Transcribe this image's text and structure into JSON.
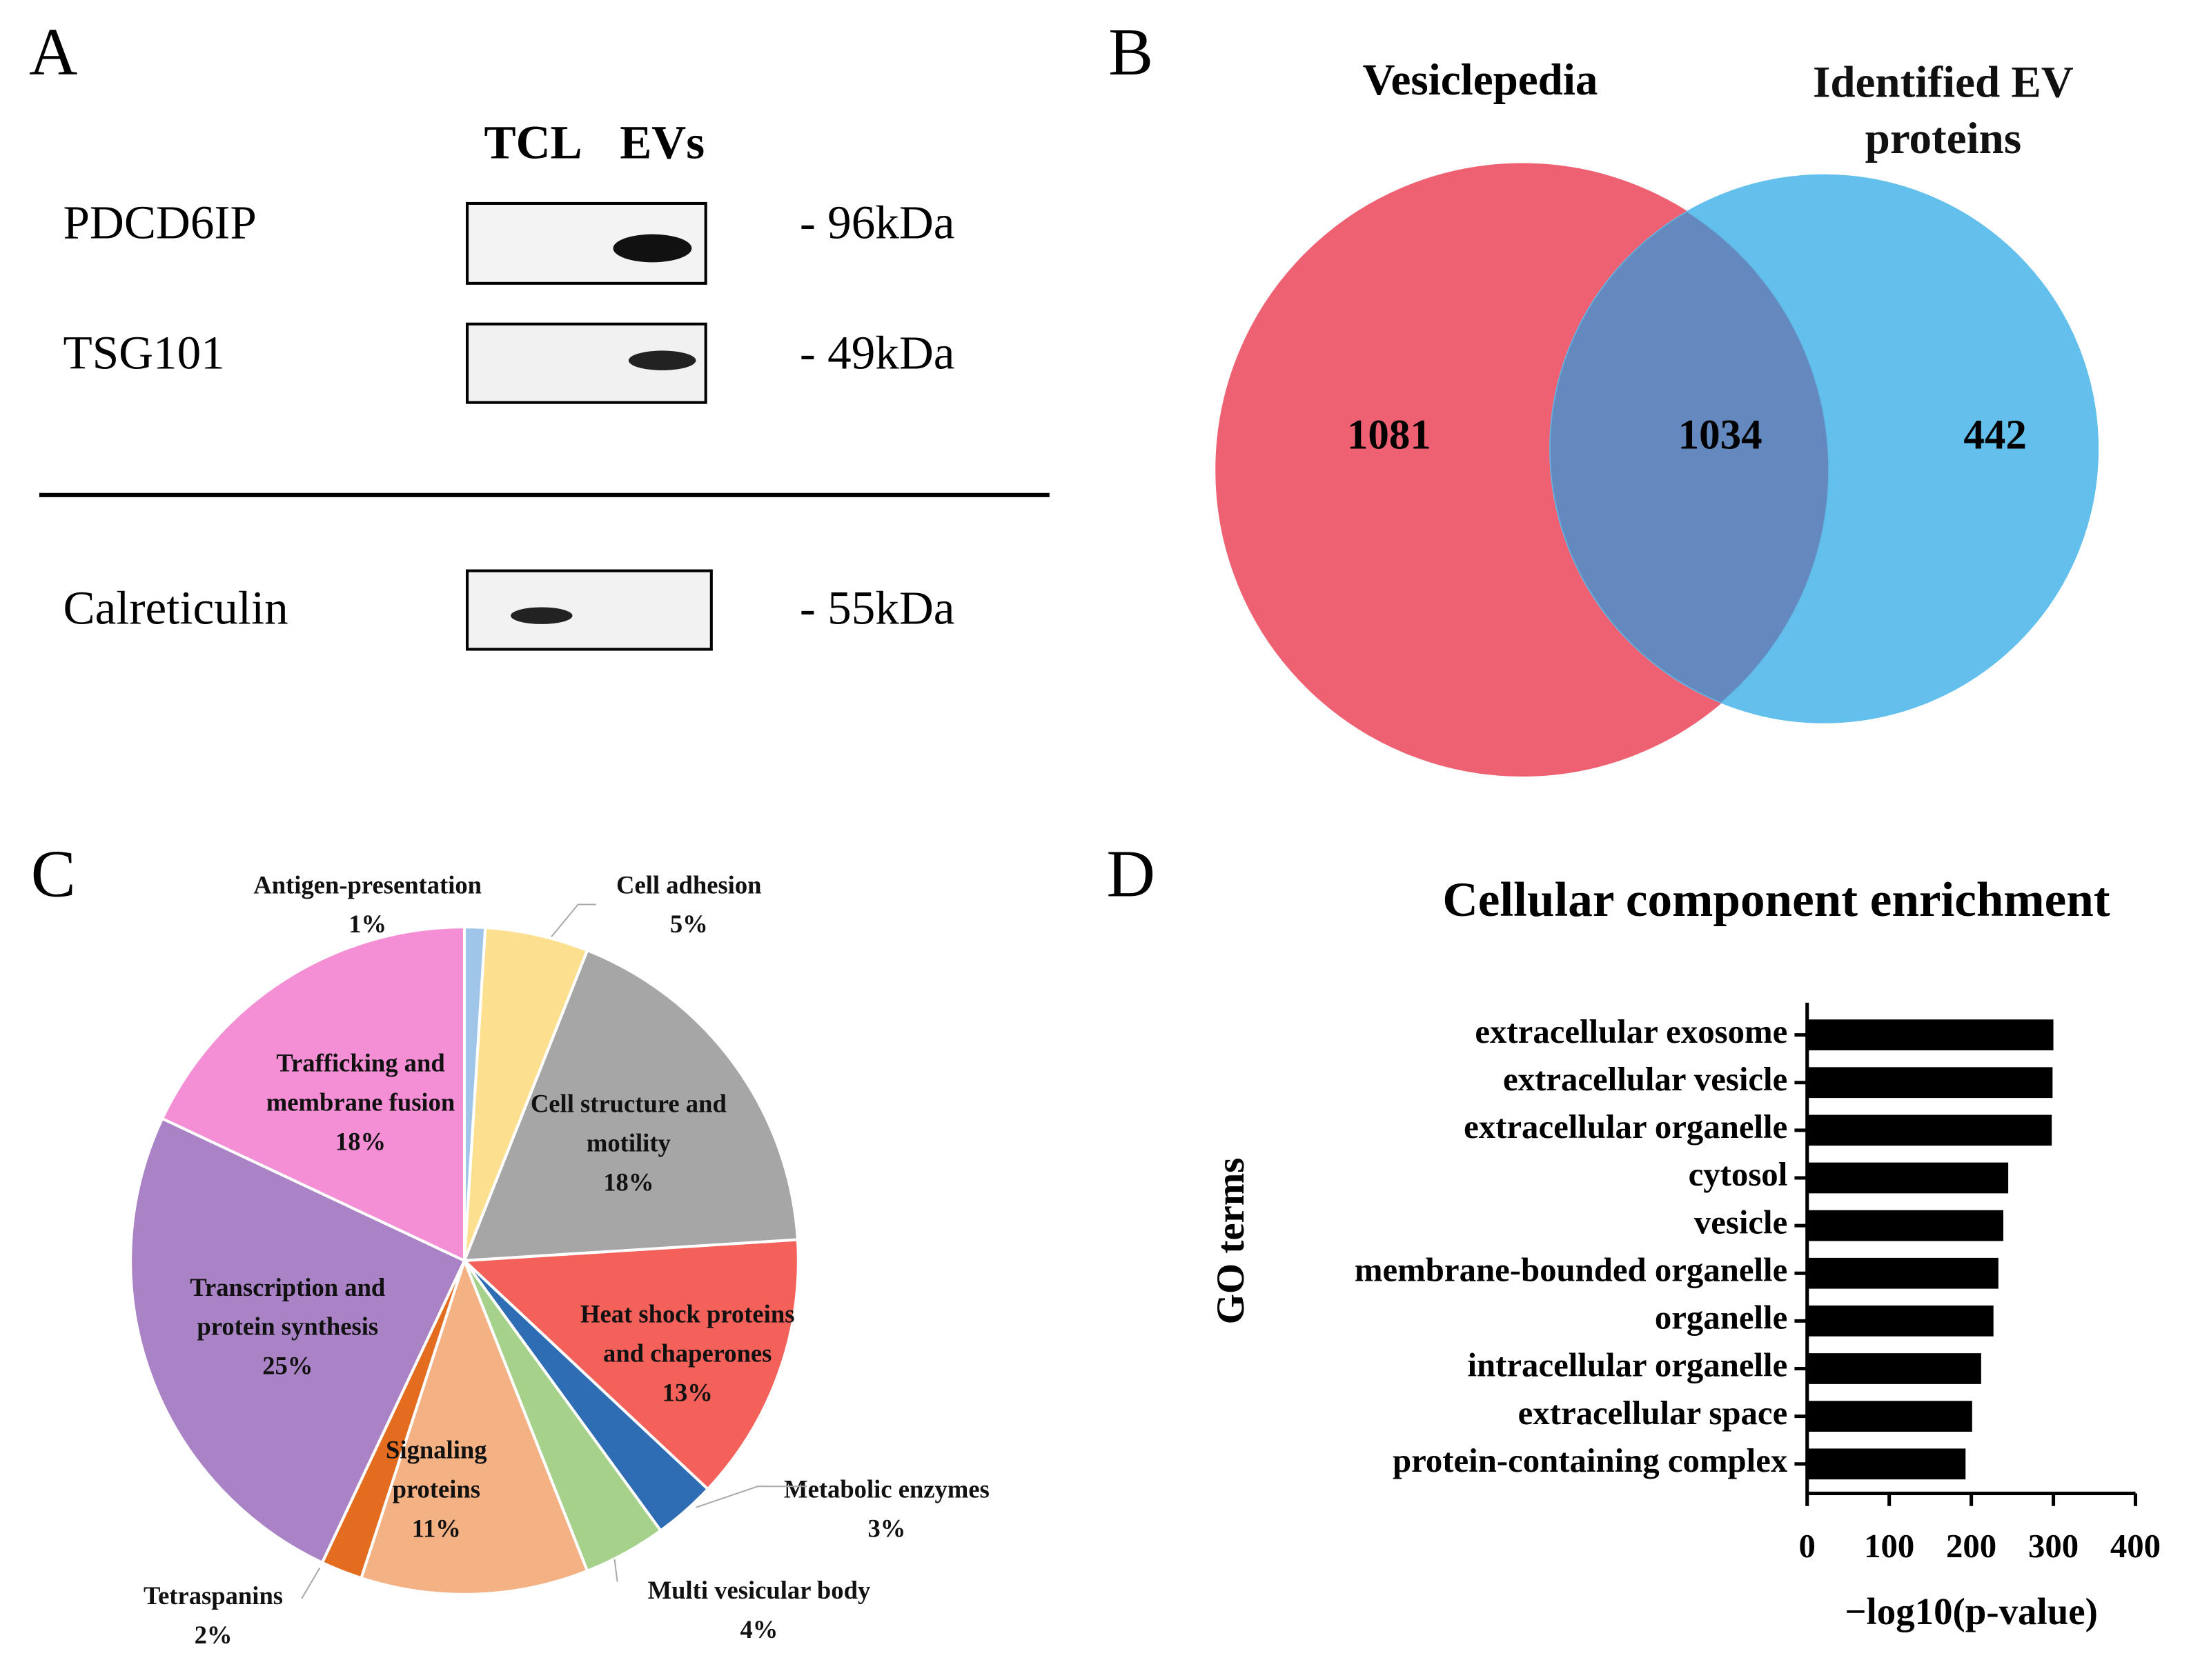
{
  "panels": [
    "A",
    "B",
    "C",
    "D"
  ],
  "blot": {
    "lanes": [
      "TCL",
      "EVs"
    ],
    "rows": [
      {
        "name": "PDCD6IP",
        "size": "- 96kDa"
      },
      {
        "name": "TSG101",
        "size": "- 49kDa"
      },
      {
        "name": "Calreticulin",
        "size": "- 55kDa"
      }
    ]
  },
  "chart_data": [
    {
      "type": "venn",
      "sets": [
        "Vesiclepedia",
        "Identified EV proteins"
      ],
      "values": [
        1081,
        1034,
        442
      ],
      "colors": [
        "#ee6172",
        "#5bbcec"
      ]
    },
    {
      "type": "pie",
      "categories": [
        "Antigen-presentation",
        "Cell adhesion",
        "Cell structure and motility",
        "Heat shock proteins and chaperones",
        "Metabolic enzymes",
        "Multi vesicular body",
        "Signaling proteins",
        "Tetraspanins",
        "Transcription and protein synthesis",
        "Trafficking and membrane fusion"
      ],
      "values": [
        1,
        5,
        18,
        13,
        3,
        4,
        11,
        2,
        25,
        18
      ],
      "value_labels": [
        "1%",
        "5%",
        "18%",
        "13%",
        "3%",
        "4%",
        "11%",
        "2%",
        "25%",
        "18%"
      ],
      "colors": [
        "#9fc5e8",
        "#fde08f",
        "#a6a6a6",
        "#f4605a",
        "#2e6db4",
        "#a5d18a",
        "#f4b183",
        "#e46c1f",
        "#a983c6",
        "#f48fd5"
      ]
    },
    {
      "type": "bar",
      "title": "Cellular component enrichment",
      "ylabel": "GO terms",
      "xlabel": "−log10(p-value)",
      "categories": [
        "extracellular exosome",
        "extracellular vesicle",
        "extracellular organelle",
        "cytosol",
        "vesicle",
        "membrane-bounded organelle",
        "organelle",
        "intracellular organelle",
        "extracellular space",
        "protein-containing complex"
      ],
      "values": [
        300,
        299,
        298,
        245,
        239,
        233,
        227,
        212,
        201,
        193
      ],
      "color": "#000000",
      "xlim": [
        0,
        400
      ],
      "xticks": [
        0,
        100,
        200,
        300,
        400
      ]
    }
  ]
}
